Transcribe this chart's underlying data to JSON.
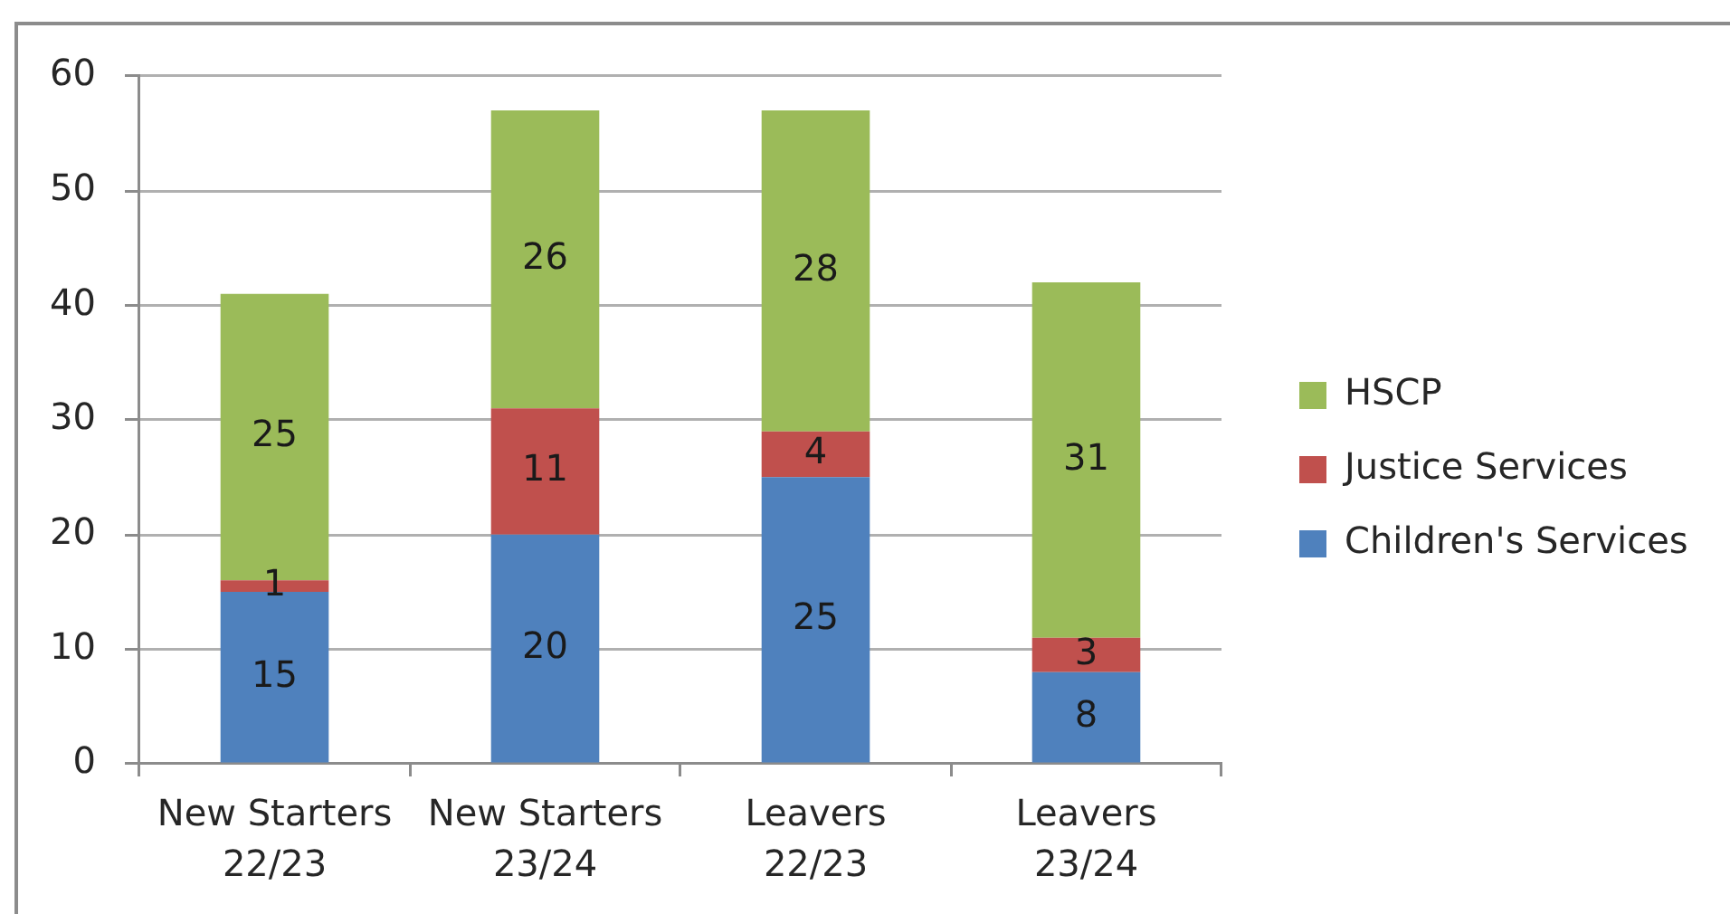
{
  "chart_data": {
    "type": "bar",
    "stacked": true,
    "categories": [
      "New Starters 22/23",
      "New Starters 23/24",
      "Leavers 22/23",
      "Leavers 23/24"
    ],
    "series": [
      {
        "name": "Children's Services",
        "color": "#4f81bd",
        "values": [
          15,
          20,
          25,
          8
        ]
      },
      {
        "name": "Justice Services",
        "color": "#c0504d",
        "values": [
          1,
          11,
          4,
          3
        ]
      },
      {
        "name": "HSCP",
        "color": "#9bbb59",
        "values": [
          25,
          26,
          28,
          31
        ]
      }
    ],
    "ylim": [
      0,
      60
    ],
    "yticks": [
      0,
      10,
      20,
      30,
      40,
      50,
      60
    ],
    "grid": "y",
    "legend": "right",
    "data_labels": true
  }
}
